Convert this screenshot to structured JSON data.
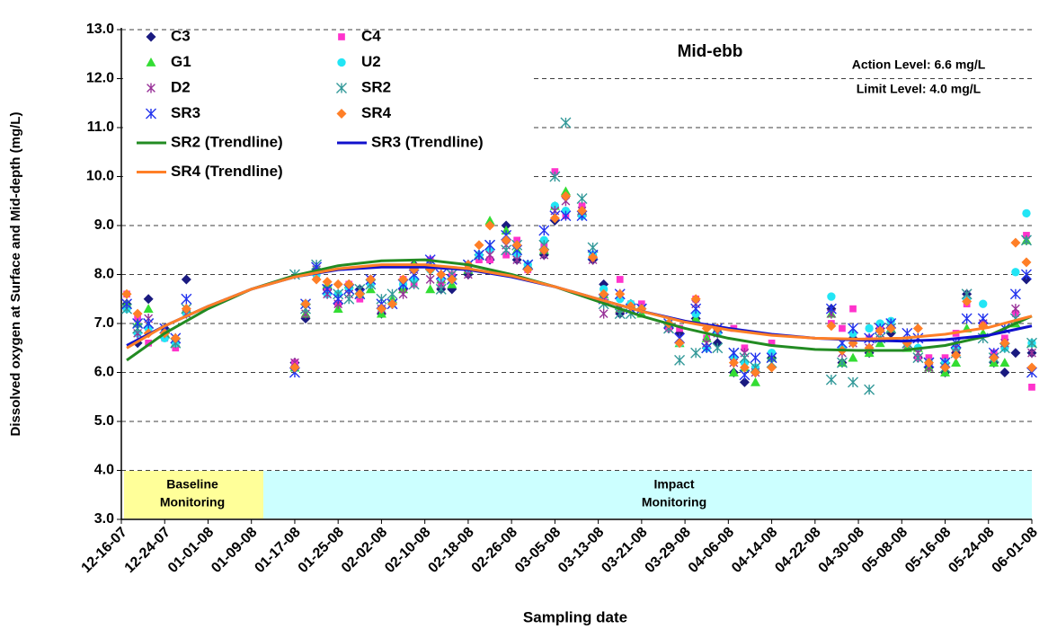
{
  "chart_data": {
    "type": "scatter",
    "y_label": "Dissolved oxygen at Surface and Mid-depth (mg/L)",
    "x_label": "Sampling date",
    "annotations": {
      "period": "Mid-ebb",
      "action_level": "Action Level: 6.6 mg/L",
      "limit_level": "Limit Level: 4.0 mg/L",
      "baseline": [
        "Baseline",
        "Monitoring"
      ],
      "impact": [
        "Impact",
        "Monitoring"
      ]
    },
    "ylim": [
      3,
      13
    ],
    "yticks": [
      {
        "value": 3,
        "label": "3.0"
      },
      {
        "value": 4,
        "label": "4.0"
      },
      {
        "value": 5,
        "label": "5.0"
      },
      {
        "value": 6,
        "label": "6.0"
      },
      {
        "value": 7,
        "label": "7.0"
      },
      {
        "value": 8,
        "label": "8.0"
      },
      {
        "value": 9,
        "label": "9.0"
      },
      {
        "value": 10,
        "label": "10.0"
      },
      {
        "value": 11,
        "label": "11.0"
      },
      {
        "value": 12,
        "label": "12.0"
      },
      {
        "value": 13,
        "label": "13.0"
      }
    ],
    "xlim": [
      "12-16-07",
      "06-01-08"
    ],
    "xticks": [
      "12-16-07",
      "12-24-07",
      "01-01-08",
      "01-09-08",
      "01-17-08",
      "01-25-08",
      "02-02-08",
      "02-10-08",
      "02-18-08",
      "02-26-08",
      "03-05-08",
      "03-13-08",
      "03-21-08",
      "03-29-08",
      "04-06-08",
      "04-14-08",
      "04-22-08",
      "04-30-08",
      "05-08-08",
      "05-16-08",
      "05-24-08",
      "06-01-08"
    ],
    "grid": true,
    "x": [
      "12-17-07",
      "12-19-07",
      "12-21-07",
      "12-24-07",
      "12-26-07",
      "12-28-07",
      "01-17-08",
      "01-19-08",
      "01-21-08",
      "01-23-08",
      "01-25-08",
      "01-27-08",
      "01-29-08",
      "01-31-08",
      "02-02-08",
      "02-04-08",
      "02-06-08",
      "02-08-08",
      "02-11-08",
      "02-13-08",
      "02-15-08",
      "02-18-08",
      "02-20-08",
      "02-22-08",
      "02-25-08",
      "02-27-08",
      "02-29-08",
      "03-03-08",
      "03-05-08",
      "03-07-08",
      "03-10-08",
      "03-12-08",
      "03-14-08",
      "03-17-08",
      "03-19-08",
      "03-21-08",
      "03-26-08",
      "03-28-08",
      "03-31-08",
      "04-02-08",
      "04-04-08",
      "04-07-08",
      "04-09-08",
      "04-11-08",
      "04-14-08",
      "04-25-08",
      "04-27-08",
      "04-29-08",
      "05-02-08",
      "05-04-08",
      "05-06-08",
      "05-09-08",
      "05-11-08",
      "05-13-08",
      "05-16-08",
      "05-18-08",
      "05-20-08",
      "05-23-08",
      "05-25-08",
      "05-27-08",
      "05-29-08",
      "05-31-08",
      "06-01-08"
    ],
    "series": [
      {
        "name": "C3",
        "color": "#1a1a80",
        "marker": "diamond",
        "values": [
          7.4,
          6.6,
          7.5,
          6.9,
          6.6,
          7.9,
          6.2,
          7.1,
          8.1,
          7.7,
          7.4,
          7.8,
          7.7,
          7.9,
          7.2,
          7.4,
          7.7,
          8.2,
          8.1,
          7.7,
          7.7,
          8.0,
          8.4,
          8.3,
          9.0,
          8.3,
          8.1,
          8.4,
          9.1,
          9.6,
          9.2,
          8.3,
          7.8,
          7.2,
          7.4,
          7.3,
          6.9,
          6.8,
          7.1,
          6.5,
          6.6,
          6.0,
          5.8,
          6.0,
          6.3,
          7.3,
          6.2,
          6.7,
          6.4,
          6.9,
          6.8,
          6.6,
          6.3,
          6.1,
          6.0,
          6.4,
          7.6,
          7.0,
          6.2,
          6.0,
          6.4,
          7.9,
          6.4
        ]
      },
      {
        "name": "C4",
        "color": "#ff33cc",
        "marker": "square",
        "values": [
          7.6,
          7.1,
          6.6,
          6.7,
          6.5,
          7.2,
          6.2,
          7.4,
          8.0,
          7.7,
          7.4,
          7.8,
          7.5,
          7.9,
          7.3,
          7.4,
          7.9,
          7.8,
          8.3,
          7.8,
          8.0,
          8.2,
          8.3,
          8.3,
          8.4,
          8.7,
          8.1,
          8.6,
          10.1,
          9.2,
          9.4,
          8.4,
          7.5,
          7.9,
          7.4,
          7.4,
          6.9,
          6.9,
          7.5,
          6.7,
          6.8,
          6.9,
          6.5,
          6.1,
          6.6,
          7.0,
          6.9,
          7.3,
          6.7,
          6.9,
          7.0,
          6.5,
          6.3,
          6.3,
          6.3,
          6.8,
          7.4,
          7.0,
          6.4,
          6.7,
          7.2,
          8.8,
          5.7
        ]
      },
      {
        "name": "G1",
        "color": "#33dd33",
        "marker": "triangle",
        "values": [
          7.4,
          7.0,
          7.3,
          6.8,
          6.6,
          7.3,
          6.1,
          7.2,
          8.1,
          7.8,
          7.3,
          7.8,
          7.6,
          7.7,
          7.2,
          7.5,
          7.7,
          8.2,
          7.7,
          7.9,
          7.8,
          8.1,
          8.4,
          9.1,
          8.9,
          8.5,
          8.2,
          8.5,
          9.4,
          9.7,
          9.3,
          8.4,
          7.6,
          7.3,
          7.4,
          7.2,
          7.0,
          6.6,
          7.1,
          6.7,
          6.9,
          6.0,
          6.1,
          5.8,
          6.3,
          7.2,
          6.2,
          6.3,
          6.4,
          6.6,
          6.9,
          6.5,
          6.5,
          6.1,
          6.0,
          6.2,
          6.9,
          6.8,
          6.2,
          6.2,
          7.0,
          8.7,
          6.6
        ]
      },
      {
        "name": "U2",
        "color": "#22e5f5",
        "marker": "circle",
        "values": [
          7.3,
          6.8,
          6.9,
          6.7,
          6.6,
          7.2,
          6.1,
          7.4,
          8.0,
          7.6,
          7.6,
          7.7,
          7.6,
          7.8,
          7.3,
          7.4,
          7.8,
          7.9,
          8.1,
          7.9,
          7.9,
          8.1,
          8.4,
          8.5,
          8.7,
          8.4,
          8.2,
          8.7,
          9.4,
          9.3,
          9.2,
          8.4,
          7.7,
          7.5,
          7.4,
          7.3,
          7.0,
          6.6,
          7.2,
          6.5,
          6.8,
          6.3,
          6.2,
          6.1,
          6.4,
          7.55,
          6.5,
          6.8,
          6.9,
          7.0,
          7.05,
          6.6,
          6.5,
          6.2,
          6.2,
          6.5,
          7.5,
          7.4,
          6.3,
          6.5,
          8.05,
          9.25,
          6.6
        ]
      },
      {
        "name": "D2",
        "color": "#993399",
        "marker": "star",
        "values": [
          7.4,
          6.8,
          7.1,
          6.9,
          6.6,
          7.2,
          6.2,
          7.2,
          8.1,
          7.6,
          7.4,
          7.6,
          7.6,
          7.8,
          7.3,
          7.4,
          7.6,
          8.1,
          7.9,
          7.8,
          7.9,
          8.0,
          8.4,
          8.4,
          8.6,
          8.3,
          8.2,
          8.4,
          9.3,
          9.5,
          9.3,
          8.3,
          7.2,
          7.3,
          7.3,
          7.3,
          6.9,
          6.7,
          7.4,
          6.6,
          6.8,
          6.2,
          6.4,
          6.0,
          6.3,
          7.2,
          6.4,
          6.6,
          6.5,
          6.8,
          6.9,
          6.6,
          6.4,
          6.1,
          6.2,
          6.5,
          7.6,
          7.0,
          6.3,
          6.6,
          7.3,
          8.7,
          6.4
        ]
      },
      {
        "name": "SR2",
        "color": "#339999",
        "marker": "asterisk",
        "values": [
          7.3,
          6.9,
          7.0,
          6.8,
          6.6,
          7.3,
          8.0,
          7.3,
          8.2,
          7.7,
          7.6,
          7.5,
          7.7,
          7.8,
          7.5,
          7.6,
          7.8,
          7.8,
          8.2,
          7.7,
          8.0,
          8.2,
          8.4,
          8.6,
          8.5,
          8.6,
          8.2,
          8.6,
          10.0,
          11.1,
          9.55,
          8.55,
          7.4,
          7.2,
          7.2,
          7.3,
          6.9,
          6.25,
          6.4,
          6.5,
          6.5,
          6.4,
          6.3,
          6.1,
          6.2,
          5.85,
          6.2,
          5.8,
          5.65,
          6.7,
          6.9,
          6.6,
          6.3,
          6.2,
          6.1,
          6.4,
          7.6,
          6.7,
          6.3,
          6.5,
          7.1,
          8.7,
          6.6
        ]
      },
      {
        "name": "SR3",
        "color": "#2233ee",
        "marker": "asterisk",
        "values": [
          7.4,
          7.0,
          7.0,
          6.9,
          6.7,
          7.5,
          6.0,
          7.4,
          8.15,
          7.7,
          7.5,
          7.7,
          7.6,
          7.9,
          7.4,
          7.4,
          7.8,
          8.0,
          8.3,
          8.0,
          7.9,
          8.2,
          8.4,
          8.6,
          8.8,
          8.5,
          8.2,
          8.9,
          9.2,
          9.2,
          9.2,
          8.4,
          7.5,
          7.6,
          7.3,
          7.3,
          7.0,
          6.7,
          7.3,
          6.5,
          6.9,
          6.4,
          5.95,
          6.3,
          6.3,
          7.3,
          6.6,
          6.9,
          6.7,
          6.9,
          7.0,
          6.8,
          6.7,
          6.2,
          6.2,
          6.6,
          7.1,
          7.1,
          6.4,
          6.9,
          7.6,
          8.0,
          6.0
        ]
      },
      {
        "name": "SR4",
        "color": "#ff7f27",
        "marker": "diamond",
        "values": [
          7.6,
          7.2,
          6.8,
          6.8,
          6.7,
          7.3,
          6.1,
          7.4,
          7.9,
          7.85,
          7.8,
          7.8,
          7.6,
          7.9,
          7.3,
          7.4,
          7.9,
          8.1,
          8.1,
          8.0,
          7.9,
          8.2,
          8.6,
          9.0,
          8.7,
          8.6,
          8.1,
          8.5,
          9.15,
          9.6,
          9.3,
          8.35,
          7.6,
          7.6,
          7.35,
          7.3,
          7.0,
          6.6,
          7.5,
          6.9,
          6.9,
          6.2,
          6.1,
          6.0,
          6.1,
          6.95,
          6.45,
          6.6,
          6.5,
          6.85,
          6.9,
          6.6,
          6.9,
          6.2,
          6.1,
          6.35,
          7.45,
          6.95,
          6.3,
          6.6,
          8.65,
          8.25,
          6.1
        ]
      }
    ],
    "trendlines": [
      {
        "name": "SR2 (Trendline)",
        "color": "#228b22",
        "x": [
          "12-17-07",
          "12-24-07",
          "01-01-08",
          "01-09-08",
          "01-17-08",
          "01-25-08",
          "02-02-08",
          "02-10-08",
          "02-18-08",
          "02-26-08",
          "03-05-08",
          "03-13-08",
          "03-21-08",
          "03-29-08",
          "04-06-08",
          "04-14-08",
          "04-22-08",
          "04-30-08",
          "05-08-08",
          "05-16-08",
          "05-24-08",
          "06-01-08"
        ],
        "values": [
          6.25,
          6.8,
          7.3,
          7.7,
          7.98,
          8.18,
          8.28,
          8.3,
          8.2,
          8.0,
          7.75,
          7.45,
          7.15,
          6.9,
          6.7,
          6.55,
          6.47,
          6.45,
          6.45,
          6.55,
          6.75,
          7.15
        ]
      },
      {
        "name": "SR3 (Trendline)",
        "color": "#1010cc",
        "x": [
          "12-17-07",
          "12-24-07",
          "01-01-08",
          "01-09-08",
          "01-17-08",
          "01-25-08",
          "02-02-08",
          "02-10-08",
          "02-18-08",
          "02-26-08",
          "03-05-08",
          "03-13-08",
          "03-21-08",
          "03-29-08",
          "04-06-08",
          "04-14-08",
          "04-22-08",
          "04-30-08",
          "05-08-08",
          "05-16-08",
          "05-24-08",
          "06-01-08"
        ],
        "values": [
          6.55,
          6.95,
          7.35,
          7.7,
          7.95,
          8.1,
          8.15,
          8.15,
          8.1,
          7.95,
          7.75,
          7.5,
          7.25,
          7.05,
          6.9,
          6.78,
          6.7,
          6.66,
          6.64,
          6.67,
          6.76,
          6.95
        ]
      },
      {
        "name": "SR4 (Trendline)",
        "color": "#ff7f27",
        "x": [
          "12-17-07",
          "12-24-07",
          "01-01-08",
          "01-09-08",
          "01-17-08",
          "01-25-08",
          "02-02-08",
          "02-10-08",
          "02-18-08",
          "02-26-08",
          "03-05-08",
          "03-13-08",
          "03-21-08",
          "03-29-08",
          "04-06-08",
          "04-14-08",
          "04-22-08",
          "04-30-08",
          "05-08-08",
          "05-16-08",
          "05-24-08",
          "06-01-08"
        ],
        "values": [
          6.5,
          6.95,
          7.35,
          7.7,
          7.95,
          8.12,
          8.2,
          8.2,
          8.12,
          7.97,
          7.75,
          7.5,
          7.25,
          7.03,
          6.87,
          6.76,
          6.7,
          6.68,
          6.7,
          6.78,
          6.92,
          7.15
        ]
      }
    ]
  }
}
